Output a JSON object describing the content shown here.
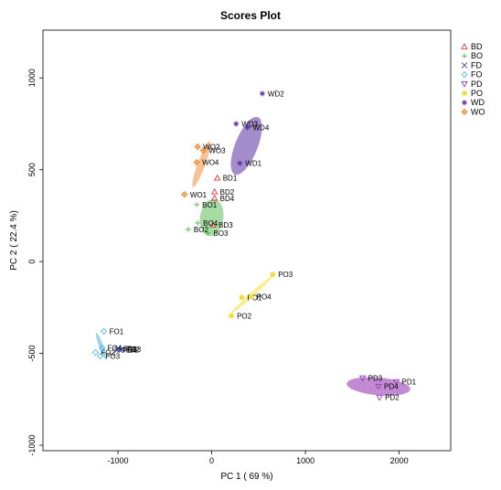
{
  "chart_data": {
    "type": "scatter",
    "title": "Scores Plot",
    "xlabel": "PC 1 ( 69 %)",
    "ylabel": "PC 2 ( 22.4 %)",
    "xlim": [
      -1800,
      2550
    ],
    "ylim": [
      -1030,
      1260
    ],
    "xticks": [
      -1000,
      0,
      1000,
      2000
    ],
    "yticks": [
      -1000,
      -500,
      0,
      500,
      1000
    ],
    "legend_position": "right",
    "grid": false,
    "series": [
      {
        "name": "BD",
        "color": "#e8333a",
        "marker": "triangle-up",
        "ellipse": {
          "cx": 60,
          "cy": 405,
          "rx": 60,
          "ry": 10,
          "angle": 90,
          "opacity": 0
        },
        "points": [
          {
            "label": "BD1",
            "x": 60,
            "y": 455
          },
          {
            "label": "BD2",
            "x": 30,
            "y": 380
          },
          {
            "label": "BD3",
            "x": 15,
            "y": 200
          },
          {
            "label": "BD4",
            "x": 30,
            "y": 345
          }
        ]
      },
      {
        "name": "BO",
        "color": "#4db849",
        "marker": "plus",
        "ellipse": {
          "cx": 0,
          "cy": 240,
          "rx": 200,
          "ry": 125,
          "angle": 82,
          "opacity": 0.5
        },
        "points": [
          {
            "label": "BO1",
            "x": -160,
            "y": 310
          },
          {
            "label": "BO2",
            "x": -250,
            "y": 175
          },
          {
            "label": "BO3",
            "x": -40,
            "y": 155
          },
          {
            "label": "BO4",
            "x": -150,
            "y": 210
          }
        ]
      },
      {
        "name": "FD",
        "color": "#3f4aa8",
        "marker": "x",
        "ellipse": null,
        "points": [
          {
            "label": "FD1",
            "x": -1000,
            "y": -475
          },
          {
            "label": "FD2",
            "x": -980,
            "y": -480
          },
          {
            "label": "FD3",
            "x": -960,
            "y": -478
          },
          {
            "label": "FD4",
            "x": -1010,
            "y": -482
          }
        ]
      },
      {
        "name": "FO",
        "color": "#55b8e8",
        "marker": "diamond",
        "ellipse": {
          "cx": -1180,
          "cy": -460,
          "rx": 150,
          "ry": 22,
          "angle": -70,
          "opacity": 0.6
        },
        "points": [
          {
            "label": "FO1",
            "x": -1150,
            "y": -380
          },
          {
            "label": "FO2",
            "x": -1240,
            "y": -495
          },
          {
            "label": "FO3",
            "x": -1190,
            "y": -515
          },
          {
            "label": "FO4",
            "x": -1170,
            "y": -470
          }
        ]
      },
      {
        "name": "PD",
        "color": "#9b3cb8",
        "marker": "triangle-down",
        "ellipse": {
          "cx": 1780,
          "cy": -680,
          "rx": 340,
          "ry": 95,
          "angle": -5,
          "opacity": 0.6
        },
        "points": [
          {
            "label": "PD1",
            "x": 1970,
            "y": -655
          },
          {
            "label": "PD2",
            "x": 1790,
            "y": -740
          },
          {
            "label": "PD3",
            "x": 1610,
            "y": -635
          },
          {
            "label": "PD4",
            "x": 1780,
            "y": -680
          }
        ]
      },
      {
        "name": "PO",
        "color": "#f2e038",
        "marker": "square",
        "ellipse": {
          "cx": 430,
          "cy": -180,
          "rx": 300,
          "ry": 25,
          "angle": 42,
          "opacity": 0.5
        },
        "points": [
          {
            "label": "PO1",
            "x": 320,
            "y": -195
          },
          {
            "label": "PO2",
            "x": 210,
            "y": -295
          },
          {
            "label": "PO3",
            "x": 650,
            "y": -70
          },
          {
            "label": "PO4",
            "x": 420,
            "y": -190
          }
        ]
      },
      {
        "name": "WD",
        "color": "#5b2fa0",
        "marker": "asterisk",
        "ellipse": {
          "cx": 370,
          "cy": 630,
          "rx": 330,
          "ry": 120,
          "angle": 68,
          "opacity": 0.55
        },
        "points": [
          {
            "label": "WD1",
            "x": 300,
            "y": 535
          },
          {
            "label": "WD2",
            "x": 540,
            "y": 915
          },
          {
            "label": "WD3",
            "x": 260,
            "y": 750
          },
          {
            "label": "WD4",
            "x": 380,
            "y": 730
          }
        ]
      },
      {
        "name": "WO",
        "color": "#f0862c",
        "marker": "diamond-plus",
        "ellipse": {
          "cx": -110,
          "cy": 530,
          "rx": 260,
          "ry": 40,
          "angle": 70,
          "opacity": 0.5
        },
        "points": [
          {
            "label": "WO1",
            "x": -290,
            "y": 365
          },
          {
            "label": "WO2",
            "x": -150,
            "y": 625
          },
          {
            "label": "WO3",
            "x": -90,
            "y": 605
          },
          {
            "label": "WO4",
            "x": -160,
            "y": 540
          }
        ]
      }
    ]
  }
}
